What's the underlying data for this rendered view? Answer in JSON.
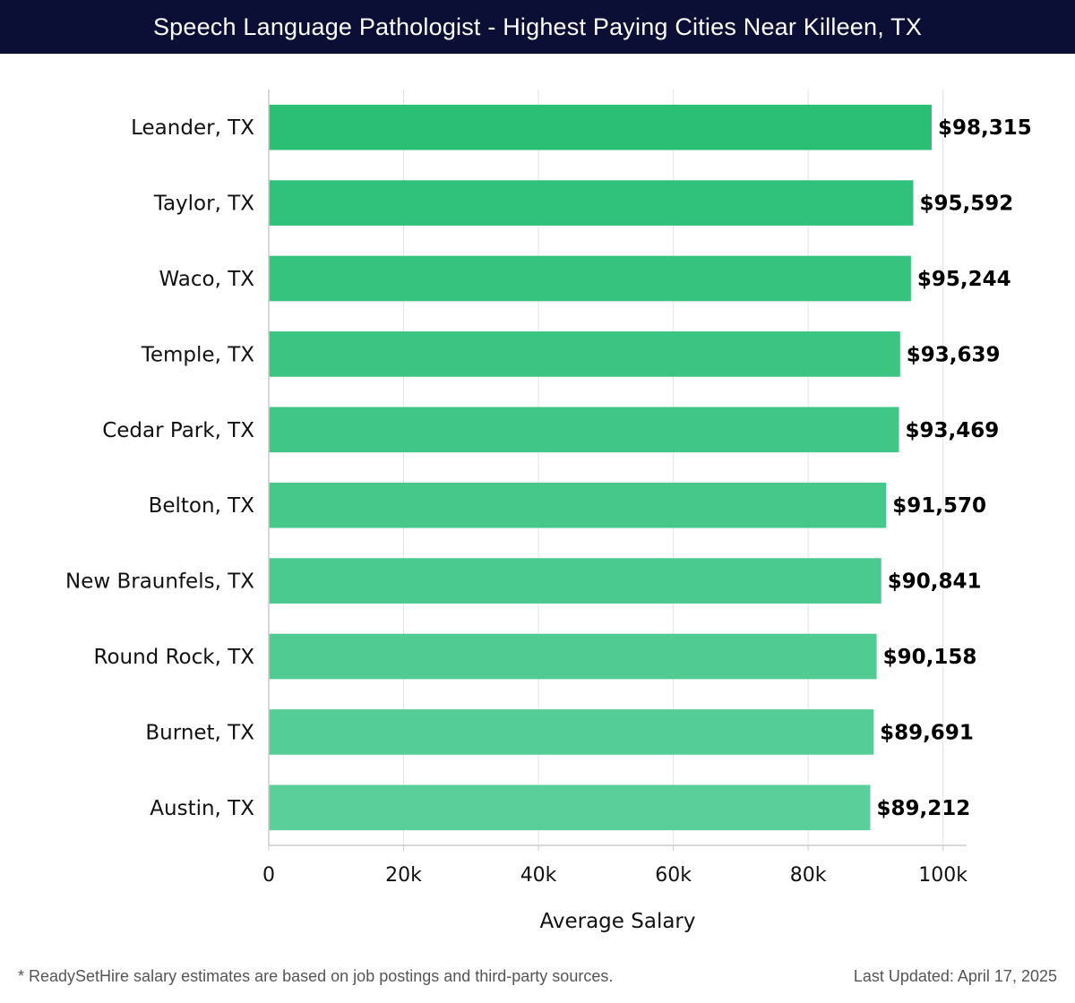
{
  "header": {
    "title": "Speech Language Pathologist - Highest Paying Cities Near Killeen, TX"
  },
  "chart_data": {
    "type": "bar",
    "orientation": "horizontal",
    "categories": [
      "Leander, TX",
      "Taylor, TX",
      "Waco, TX",
      "Temple, TX",
      "Cedar Park, TX",
      "Belton, TX",
      "New Braunfels, TX",
      "Round Rock, TX",
      "Burnet, TX",
      "Austin, TX"
    ],
    "values": [
      98315,
      95592,
      95244,
      93639,
      93469,
      91570,
      90841,
      90158,
      89691,
      89212
    ],
    "value_labels": [
      "$98,315",
      "$95,592",
      "$95,244",
      "$93,639",
      "$93,469",
      "$91,570",
      "$90,841",
      "$90,158",
      "$89,691",
      "$89,212"
    ],
    "xlabel": "Average Salary",
    "ylabel": "",
    "xlim": [
      0,
      103500
    ],
    "xticks": [
      0,
      20000,
      40000,
      60000,
      80000,
      100000
    ],
    "xtick_labels": [
      "0",
      "20k",
      "40k",
      "60k",
      "80k",
      "100k"
    ],
    "grid": "vertical",
    "colors": {
      "top": "#2bbf76",
      "bottom": "#5acf9a",
      "grid": "#e3e3e3",
      "axis": "#cccccc"
    }
  },
  "footer": {
    "note": "* ReadySetHire salary estimates are based on job postings and third-party sources.",
    "updated": "Last Updated: April 17, 2025"
  }
}
